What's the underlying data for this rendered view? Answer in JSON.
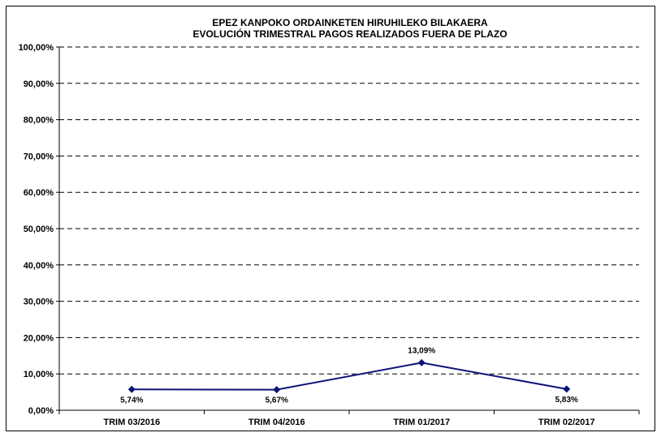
{
  "chart_data": {
    "type": "line",
    "title": "EPEZ KANPOKO ORDAINKETEN HIRUHILEKO BILAKAERA",
    "subtitle": "EVOLUCIÓN TRIMESTRAL PAGOS REALIZADOS FUERA DE PLAZO",
    "categories": [
      "TRIM 03/2016",
      "TRIM 04/2016",
      "TRIM 01/2017",
      "TRIM 02/2017"
    ],
    "values": [
      5.74,
      5.67,
      13.09,
      5.83
    ],
    "value_labels": [
      "5,74%",
      "5,67%",
      "13,09%",
      "5,83%"
    ],
    "ylim": [
      0,
      100
    ],
    "yticks": [
      "0,00%",
      "10,00%",
      "20,00%",
      "30,00%",
      "40,00%",
      "50,00%",
      "60,00%",
      "70,00%",
      "80,00%",
      "90,00%",
      "100,00%"
    ],
    "grid": true,
    "grid_style": "dashed",
    "line_color": "#0d1478",
    "marker": "diamond"
  }
}
